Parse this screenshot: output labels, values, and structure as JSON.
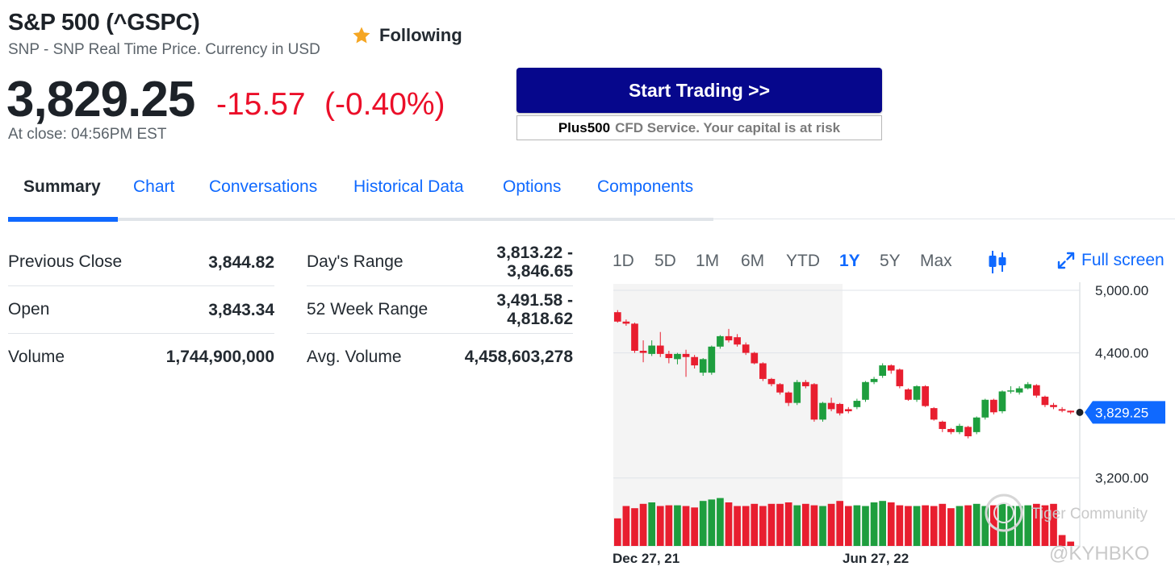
{
  "header": {
    "title": "S&P 500 (^GSPC)",
    "subtitle": "SNP - SNP Real Time Price. Currency in USD",
    "follow_label": "Following",
    "follow_icon": "star-icon"
  },
  "quote": {
    "price": "3,829.25",
    "change": "-15.57",
    "change_pct": "(-0.40%)",
    "at_close": "At close: 04:56PM EST",
    "down_color": "#eb0f29"
  },
  "ad": {
    "button_label": "Start Trading >>",
    "brand": "Plus500",
    "disclaimer": "CFD Service. Your capital is at risk",
    "button_color": "#06078c"
  },
  "tabs": [
    {
      "label": "Summary",
      "active": true
    },
    {
      "label": "Chart"
    },
    {
      "label": "Conversations"
    },
    {
      "label": "Historical Data"
    },
    {
      "label": "Options"
    },
    {
      "label": "Components"
    }
  ],
  "stats": {
    "left": [
      {
        "label": "Previous Close",
        "value": "3,844.82"
      },
      {
        "label": "Open",
        "value": "3,843.34"
      },
      {
        "label": "Volume",
        "value": "1,744,900,000"
      }
    ],
    "right": [
      {
        "label": "Day's Range",
        "value": "3,813.22 -",
        "value2": "3,846.65"
      },
      {
        "label": "52 Week Range",
        "value": "3,491.58 -",
        "value2": "4,818.62"
      },
      {
        "label": "Avg. Volume",
        "value": "4,458,603,278"
      }
    ]
  },
  "chart_controls": {
    "ranges": [
      "1D",
      "5D",
      "1M",
      "6M",
      "YTD",
      "1Y",
      "5Y",
      "Max"
    ],
    "active_range": "1Y",
    "candle_icon": "candlestick-icon",
    "fullscreen_icon": "expand-icon",
    "fullscreen_label": "Full screen"
  },
  "chart_data": {
    "type": "candlestick",
    "y_ticks": [
      "5,000.00",
      "4,400.00",
      "3,200.00"
    ],
    "ylim": [
      3000,
      5000
    ],
    "x_ticks": [
      "Dec 27, 21",
      "Jun 27, 22"
    ],
    "current_label": "3,829.25",
    "current_value": 3829.25,
    "grid": true,
    "up_color": "#1e9e3e",
    "down_color": "#e81e2f",
    "accent_color": "#0f69ff",
    "candles": [
      {
        "o": 4790,
        "c": 4700,
        "h": 4810,
        "l": 4690
      },
      {
        "o": 4700,
        "c": 4680,
        "h": 4720,
        "l": 4660
      },
      {
        "o": 4680,
        "c": 4420,
        "h": 4690,
        "l": 4400
      },
      {
        "o": 4420,
        "c": 4400,
        "h": 4520,
        "l": 4310
      },
      {
        "o": 4390,
        "c": 4470,
        "h": 4520,
        "l": 4370
      },
      {
        "o": 4470,
        "c": 4390,
        "h": 4600,
        "l": 4360
      },
      {
        "o": 4390,
        "c": 4350,
        "h": 4420,
        "l": 4300
      },
      {
        "o": 4340,
        "c": 4390,
        "h": 4400,
        "l": 4290
      },
      {
        "o": 4390,
        "c": 4360,
        "h": 4430,
        "l": 4170
      },
      {
        "o": 4360,
        "c": 4280,
        "h": 4380,
        "l": 4250
      },
      {
        "o": 4210,
        "c": 4340,
        "h": 4350,
        "l": 4180
      },
      {
        "o": 4210,
        "c": 4460,
        "h": 4470,
        "l": 4190
      },
      {
        "o": 4460,
        "c": 4560,
        "h": 4570,
        "l": 4440
      },
      {
        "o": 4560,
        "c": 4520,
        "h": 4630,
        "l": 4500
      },
      {
        "o": 4550,
        "c": 4480,
        "h": 4580,
        "l": 4460
      },
      {
        "o": 4480,
        "c": 4400,
        "h": 4500,
        "l": 4380
      },
      {
        "o": 4400,
        "c": 4300,
        "h": 4410,
        "l": 4290
      },
      {
        "o": 4300,
        "c": 4150,
        "h": 4310,
        "l": 4130
      },
      {
        "o": 4150,
        "c": 4100,
        "h": 4160,
        "l": 4080
      },
      {
        "o": 4100,
        "c": 4020,
        "h": 4110,
        "l": 4000
      },
      {
        "o": 4020,
        "c": 3920,
        "h": 4030,
        "l": 3890
      },
      {
        "o": 3920,
        "c": 4120,
        "h": 4140,
        "l": 3900
      },
      {
        "o": 4120,
        "c": 4080,
        "h": 4140,
        "l": 4060
      },
      {
        "o": 4100,
        "c": 3760,
        "h": 4110,
        "l": 3740
      },
      {
        "o": 3760,
        "c": 3920,
        "h": 3930,
        "l": 3740
      },
      {
        "o": 3920,
        "c": 3860,
        "h": 3970,
        "l": 3840
      },
      {
        "o": 3910,
        "c": 3820,
        "h": 3920,
        "l": 3800
      },
      {
        "o": 3860,
        "c": 3840,
        "h": 3880,
        "l": 3820
      },
      {
        "o": 3880,
        "c": 3940,
        "h": 3960,
        "l": 3860
      },
      {
        "o": 3950,
        "c": 4120,
        "h": 4130,
        "l": 3930
      },
      {
        "o": 4120,
        "c": 4150,
        "h": 4170,
        "l": 4100
      },
      {
        "o": 4180,
        "c": 4280,
        "h": 4300,
        "l": 4160
      },
      {
        "o": 4280,
        "c": 4230,
        "h": 4290,
        "l": 4200
      },
      {
        "o": 4240,
        "c": 4080,
        "h": 4250,
        "l": 4060
      },
      {
        "o": 4050,
        "c": 3950,
        "h": 4060,
        "l": 3940
      },
      {
        "o": 3950,
        "c": 4080,
        "h": 4090,
        "l": 3930
      },
      {
        "o": 4080,
        "c": 3890,
        "h": 4090,
        "l": 3880
      },
      {
        "o": 3870,
        "c": 3760,
        "h": 3880,
        "l": 3750
      },
      {
        "o": 3740,
        "c": 3670,
        "h": 3750,
        "l": 3640
      },
      {
        "o": 3670,
        "c": 3640,
        "h": 3680,
        "l": 3620
      },
      {
        "o": 3640,
        "c": 3700,
        "h": 3720,
        "l": 3620
      },
      {
        "o": 3690,
        "c": 3600,
        "h": 3700,
        "l": 3580
      },
      {
        "o": 3640,
        "c": 3780,
        "h": 3790,
        "l": 3620
      },
      {
        "o": 3780,
        "c": 3950,
        "h": 3960,
        "l": 3760
      },
      {
        "o": 3950,
        "c": 3830,
        "h": 3960,
        "l": 3810
      },
      {
        "o": 3840,
        "c": 4030,
        "h": 4040,
        "l": 3820
      },
      {
        "o": 4030,
        "c": 4040,
        "h": 4080,
        "l": 4010
      },
      {
        "o": 4020,
        "c": 4060,
        "h": 4080,
        "l": 4000
      },
      {
        "o": 4060,
        "c": 4100,
        "h": 4120,
        "l": 4050
      },
      {
        "o": 4090,
        "c": 3990,
        "h": 4100,
        "l": 3970
      },
      {
        "o": 3980,
        "c": 3900,
        "h": 3990,
        "l": 3880
      },
      {
        "o": 3900,
        "c": 3880,
        "h": 3920,
        "l": 3860
      },
      {
        "o": 3860,
        "c": 3845,
        "h": 3880,
        "l": 3830
      },
      {
        "o": 3845,
        "c": 3829.25,
        "h": 3846.65,
        "l": 3813.22
      }
    ],
    "volumes": [
      0.38,
      0.55,
      0.52,
      0.58,
      0.6,
      0.55,
      0.56,
      0.56,
      0.55,
      0.53,
      0.62,
      0.64,
      0.66,
      0.6,
      0.55,
      0.55,
      0.58,
      0.55,
      0.58,
      0.58,
      0.6,
      0.56,
      0.58,
      0.56,
      0.55,
      0.58,
      0.62,
      0.55,
      0.56,
      0.55,
      0.6,
      0.62,
      0.6,
      0.56,
      0.55,
      0.55,
      0.56,
      0.55,
      0.58,
      0.52,
      0.55,
      0.56,
      0.58,
      0.55,
      0.56,
      0.58,
      0.55,
      0.55,
      0.56,
      0.58,
      0.56,
      0.58,
      0.15,
      0.06
    ]
  },
  "watermark": {
    "text1": "Tiger Community",
    "text2": "@KYHBKO"
  }
}
